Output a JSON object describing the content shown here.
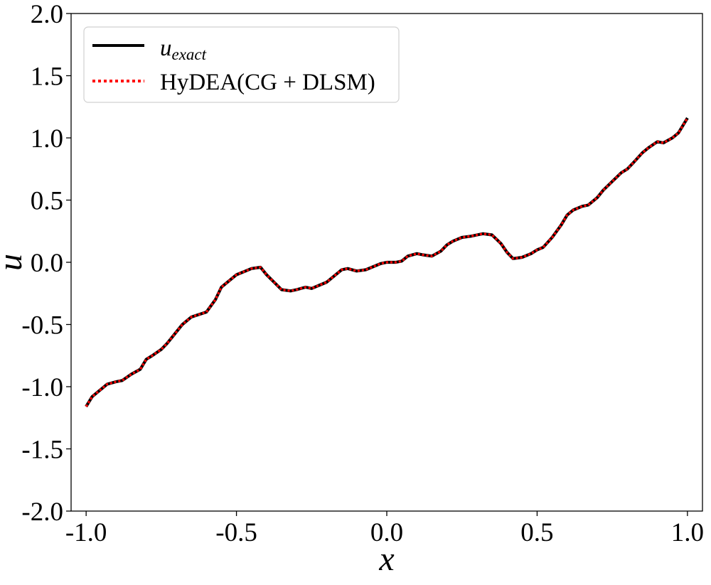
{
  "chart_data": {
    "type": "line",
    "xlabel": "x",
    "ylabel": "u",
    "xlim": [
      -1.05,
      1.05
    ],
    "ylim": [
      -2.0,
      2.0
    ],
    "xticks": [
      -1.0,
      -0.5,
      0.0,
      0.5,
      1.0
    ],
    "xtick_labels": [
      "-1.0",
      "-0.5",
      "0.0",
      "0.5",
      "1.0"
    ],
    "yticks": [
      -2.0,
      -1.5,
      -1.0,
      -0.5,
      0.0,
      0.5,
      1.0,
      1.5,
      2.0
    ],
    "ytick_labels": [
      "-2.0",
      "-1.5",
      "-1.0",
      "-0.5",
      "0.0",
      "0.5",
      "1.0",
      "1.5",
      "2.0"
    ],
    "grid": false,
    "legend_position": "top-left",
    "series": [
      {
        "name_main": "u",
        "name_sub": "exact",
        "color": "#000000",
        "style": "solid",
        "x": [
          -1.0,
          -0.98,
          -0.95,
          -0.93,
          -0.9,
          -0.88,
          -0.85,
          -0.82,
          -0.8,
          -0.78,
          -0.75,
          -0.73,
          -0.7,
          -0.68,
          -0.65,
          -0.6,
          -0.57,
          -0.55,
          -0.52,
          -0.5,
          -0.47,
          -0.45,
          -0.42,
          -0.4,
          -0.35,
          -0.32,
          -0.3,
          -0.27,
          -0.25,
          -0.22,
          -0.2,
          -0.18,
          -0.15,
          -0.13,
          -0.1,
          -0.07,
          -0.05,
          -0.02,
          0.0,
          0.03,
          0.05,
          0.07,
          0.1,
          0.12,
          0.15,
          0.18,
          0.2,
          0.22,
          0.25,
          0.28,
          0.3,
          0.32,
          0.35,
          0.38,
          0.4,
          0.42,
          0.45,
          0.48,
          0.5,
          0.52,
          0.55,
          0.58,
          0.6,
          0.62,
          0.65,
          0.67,
          0.7,
          0.72,
          0.75,
          0.78,
          0.8,
          0.82,
          0.85,
          0.87,
          0.9,
          0.92,
          0.95,
          0.97,
          1.0
        ],
        "values": [
          -1.16,
          -1.08,
          -1.02,
          -0.98,
          -0.96,
          -0.95,
          -0.9,
          -0.86,
          -0.78,
          -0.75,
          -0.7,
          -0.65,
          -0.56,
          -0.5,
          -0.44,
          -0.4,
          -0.3,
          -0.2,
          -0.14,
          -0.1,
          -0.07,
          -0.05,
          -0.04,
          -0.1,
          -0.22,
          -0.23,
          -0.22,
          -0.2,
          -0.21,
          -0.18,
          -0.16,
          -0.12,
          -0.06,
          -0.05,
          -0.07,
          -0.06,
          -0.04,
          -0.01,
          0.0,
          0.0,
          0.01,
          0.05,
          0.07,
          0.06,
          0.05,
          0.09,
          0.14,
          0.17,
          0.2,
          0.21,
          0.22,
          0.23,
          0.22,
          0.15,
          0.08,
          0.03,
          0.04,
          0.07,
          0.1,
          0.12,
          0.2,
          0.3,
          0.38,
          0.42,
          0.45,
          0.46,
          0.52,
          0.58,
          0.65,
          0.72,
          0.75,
          0.8,
          0.88,
          0.92,
          0.97,
          0.96,
          1.0,
          1.04,
          1.16
        ]
      },
      {
        "name": "HyDEA(CG + DLSM)",
        "color": "#ff0000",
        "style": "dotted",
        "x": [
          -1.0,
          -0.98,
          -0.95,
          -0.93,
          -0.9,
          -0.88,
          -0.85,
          -0.82,
          -0.8,
          -0.78,
          -0.75,
          -0.73,
          -0.7,
          -0.68,
          -0.65,
          -0.6,
          -0.57,
          -0.55,
          -0.52,
          -0.5,
          -0.47,
          -0.45,
          -0.42,
          -0.4,
          -0.35,
          -0.32,
          -0.3,
          -0.27,
          -0.25,
          -0.22,
          -0.2,
          -0.18,
          -0.15,
          -0.13,
          -0.1,
          -0.07,
          -0.05,
          -0.02,
          0.0,
          0.03,
          0.05,
          0.07,
          0.1,
          0.12,
          0.15,
          0.18,
          0.2,
          0.22,
          0.25,
          0.28,
          0.3,
          0.32,
          0.35,
          0.38,
          0.4,
          0.42,
          0.45,
          0.48,
          0.5,
          0.52,
          0.55,
          0.58,
          0.6,
          0.62,
          0.65,
          0.67,
          0.7,
          0.72,
          0.75,
          0.78,
          0.8,
          0.82,
          0.85,
          0.87,
          0.9,
          0.92,
          0.95,
          0.97,
          1.0
        ],
        "values": [
          -1.16,
          -1.08,
          -1.02,
          -0.98,
          -0.96,
          -0.95,
          -0.9,
          -0.86,
          -0.78,
          -0.75,
          -0.7,
          -0.65,
          -0.56,
          -0.5,
          -0.44,
          -0.4,
          -0.3,
          -0.2,
          -0.14,
          -0.1,
          -0.07,
          -0.05,
          -0.04,
          -0.1,
          -0.22,
          -0.23,
          -0.22,
          -0.2,
          -0.21,
          -0.18,
          -0.16,
          -0.12,
          -0.06,
          -0.05,
          -0.07,
          -0.06,
          -0.04,
          -0.01,
          0.0,
          0.0,
          0.01,
          0.05,
          0.07,
          0.06,
          0.05,
          0.09,
          0.14,
          0.17,
          0.2,
          0.21,
          0.22,
          0.23,
          0.22,
          0.15,
          0.08,
          0.03,
          0.04,
          0.07,
          0.1,
          0.12,
          0.2,
          0.3,
          0.38,
          0.42,
          0.45,
          0.46,
          0.52,
          0.58,
          0.65,
          0.72,
          0.75,
          0.8,
          0.88,
          0.92,
          0.97,
          0.96,
          1.0,
          1.04,
          1.16
        ]
      }
    ]
  }
}
